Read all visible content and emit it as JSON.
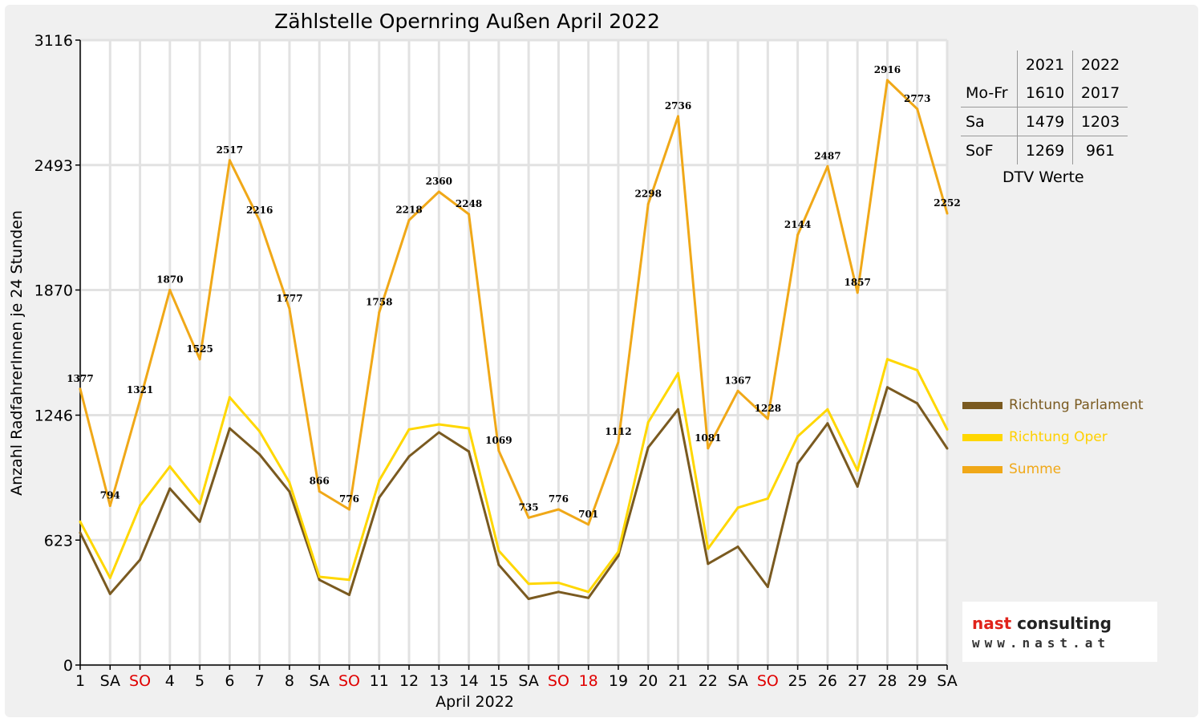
{
  "chart_data": {
    "type": "line",
    "title": "Zählstelle Opernring Außen April 2022",
    "xlabel": "April 2022",
    "ylabel": "Anzahl RadfahrerInnen je 24 Stunden",
    "ylim": [
      0,
      3116
    ],
    "y_ticks": [
      0,
      623,
      1246,
      1870,
      2493,
      3116
    ],
    "grid": true,
    "legend_position": "right",
    "categories": [
      "1",
      "SA",
      "SO",
      "4",
      "5",
      "6",
      "7",
      "8",
      "SA",
      "SO",
      "11",
      "12",
      "13",
      "14",
      "15",
      "SA",
      "SO",
      "18",
      "19",
      "20",
      "21",
      "22",
      "SA",
      "SO",
      "25",
      "26",
      "27",
      "28",
      "29",
      "SA"
    ],
    "category_colors": [
      "#000000",
      "#000000",
      "#e00000",
      "#000000",
      "#000000",
      "#000000",
      "#000000",
      "#000000",
      "#000000",
      "#e00000",
      "#000000",
      "#000000",
      "#000000",
      "#000000",
      "#000000",
      "#000000",
      "#e00000",
      "#e00000",
      "#000000",
      "#000000",
      "#000000",
      "#000000",
      "#000000",
      "#e00000",
      "#000000",
      "#000000",
      "#000000",
      "#000000",
      "#000000",
      "#000000"
    ],
    "series": [
      {
        "name": "Richtung Parlament",
        "color": "#7a5a20",
        "values": [
          660,
          355,
          525,
          880,
          715,
          1180,
          1050,
          865,
          425,
          350,
          835,
          1040,
          1160,
          1065,
          500,
          330,
          365,
          335,
          545,
          1085,
          1275,
          505,
          590,
          390,
          1005,
          1205,
          890,
          1385,
          1305,
          1080
        ]
      },
      {
        "name": "Richtung Oper",
        "color": "#ffd700",
        "values": [
          715,
          435,
          795,
          990,
          805,
          1335,
          1165,
          910,
          440,
          425,
          920,
          1175,
          1200,
          1180,
          570,
          405,
          410,
          365,
          565,
          1210,
          1455,
          580,
          785,
          830,
          1140,
          1275,
          970,
          1525,
          1470,
          1175
        ]
      },
      {
        "name": "Summe",
        "color": "#f0a818",
        "label_values": true,
        "values": [
          1377,
          794,
          1321,
          1870,
          1525,
          2517,
          2216,
          1777,
          866,
          776,
          1758,
          2218,
          2360,
          2248,
          1069,
          735,
          776,
          701,
          1112,
          2298,
          2736,
          1081,
          1367,
          1228,
          2144,
          2487,
          1857,
          2916,
          2773,
          2252
        ]
      }
    ]
  },
  "dtv_table": {
    "years": [
      "2021",
      "2022"
    ],
    "rows": [
      {
        "label": "Mo-Fr",
        "v2021": "1610",
        "v2022": "2017"
      },
      {
        "label": "Sa",
        "v2021": "1479",
        "v2022": "1203"
      },
      {
        "label": "SoF",
        "v2021": "1269",
        "v2022": "961"
      }
    ],
    "caption": "DTV Werte"
  },
  "logo": {
    "name_prefix": "nast",
    "name_suffix": " consulting",
    "url": "www.nast.at",
    "accent": "#e0231b"
  }
}
